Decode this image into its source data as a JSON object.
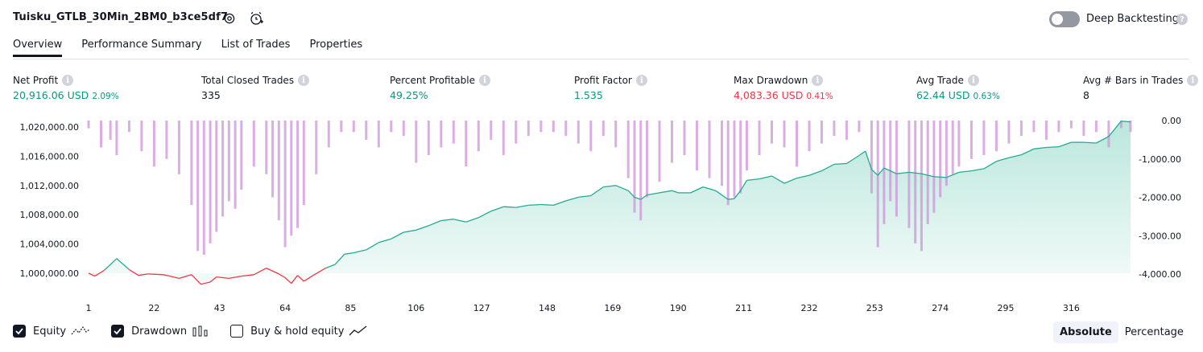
{
  "header": {
    "strategy_name": "Tuisku_GTLB_30Min_2BM0_b3ce5df7",
    "settings_icon": "gear-icon",
    "alert_icon": "alarm-clock-plus-icon",
    "deep_backtesting_label": "Deep Backtesting",
    "deep_backtesting_enabled": false,
    "help_icon": "question-mark-icon"
  },
  "tabs": [
    {
      "label": "Overview",
      "active": true
    },
    {
      "label": "Performance Summary",
      "active": false
    },
    {
      "label": "List of Trades",
      "active": false
    },
    {
      "label": "Properties",
      "active": false
    }
  ],
  "metrics": {
    "net_profit": {
      "label": "Net Profit",
      "value": "20,916.06 USD",
      "pct": "2.09%"
    },
    "total_closed_trades": {
      "label": "Total Closed Trades",
      "value": "335"
    },
    "percent_profitable": {
      "label": "Percent Profitable",
      "value": "49.25%"
    },
    "profit_factor": {
      "label": "Profit Factor",
      "value": "1.535"
    },
    "max_drawdown": {
      "label": "Max Drawdown",
      "value": "4,083.36 USD",
      "pct": "0.41%"
    },
    "avg_trade": {
      "label": "Avg Trade",
      "value": "62.44 USD",
      "pct": "0.63%"
    },
    "avg_bars": {
      "label": "Avg # Bars in Trades",
      "value": "8"
    }
  },
  "colors": {
    "profit_green": "#089981",
    "loss_red": "#f23645",
    "equity_line": "#22ab94",
    "equity_fill": "#b2e4d8",
    "drawdown_bar": "#ce93d8",
    "drawdown_bar_overlap": "#9fa8da"
  },
  "chart_data": {
    "type": "area",
    "x_tick_labels": [
      "1",
      "22",
      "43",
      "64",
      "85",
      "106",
      "127",
      "148",
      "169",
      "190",
      "211",
      "232",
      "253",
      "274",
      "295",
      "316"
    ],
    "x_range": [
      1,
      335
    ],
    "left_axis": {
      "tick_labels": [
        "1,020,000.00",
        "1,016,000.00",
        "1,012,000.00",
        "1,008,000.00",
        "1,004,000.00",
        "1,000,000.00"
      ],
      "range": [
        998000,
        1021000
      ]
    },
    "right_axis": {
      "tick_labels": [
        "0.00",
        "-1,000.00",
        "-2,000.00",
        "-3,000.00",
        "-4,000.00"
      ],
      "range": [
        -4000,
        0
      ]
    },
    "series": [
      {
        "name": "Equity",
        "kind": "area",
        "x": [
          1,
          3,
          6,
          10,
          14,
          17,
          20,
          25,
          30,
          34,
          37,
          40,
          42,
          46,
          50,
          54,
          58,
          62,
          64,
          66,
          68,
          70,
          73,
          77,
          80,
          83,
          86,
          90,
          94,
          98,
          102,
          106,
          110,
          114,
          118,
          122,
          126,
          130,
          134,
          138,
          142,
          146,
          150,
          154,
          158,
          162,
          166,
          170,
          174,
          176,
          178,
          180,
          184,
          188,
          190,
          194,
          198,
          202,
          206,
          208,
          210,
          212,
          216,
          220,
          224,
          228,
          232,
          236,
          240,
          244,
          248,
          250,
          252,
          254,
          256,
          260,
          264,
          268,
          272,
          276,
          280,
          284,
          288,
          292,
          296,
          300,
          304,
          308,
          312,
          316,
          320,
          324,
          328,
          332,
          335
        ],
        "values": [
          1000000,
          999600,
          1000400,
          1002000,
          1000500,
          999700,
          999900,
          999800,
          999300,
          999800,
          998500,
          998800,
          999500,
          999300,
          999600,
          999800,
          1000700,
          999900,
          999400,
          998600,
          999700,
          998900,
          999700,
          1000700,
          1001200,
          1002600,
          1002800,
          1003200,
          1004200,
          1004700,
          1005600,
          1005900,
          1006500,
          1007200,
          1007400,
          1007000,
          1007600,
          1008500,
          1009100,
          1009000,
          1009300,
          1009400,
          1009300,
          1009900,
          1010400,
          1010600,
          1011800,
          1012000,
          1011300,
          1010400,
          1010100,
          1010700,
          1011000,
          1011300,
          1011000,
          1011000,
          1011800,
          1011300,
          1010100,
          1010200,
          1011300,
          1012700,
          1012900,
          1013300,
          1012300,
          1013000,
          1013400,
          1014000,
          1014900,
          1015000,
          1016100,
          1016700,
          1014200,
          1013400,
          1014400,
          1013600,
          1013800,
          1013600,
          1013200,
          1013100,
          1013800,
          1014000,
          1014300,
          1015300,
          1015800,
          1016200,
          1017000,
          1017200,
          1017300,
          1017900,
          1017900,
          1017800,
          1018700,
          1020800,
          1020700
        ]
      },
      {
        "name": "Drawdown",
        "kind": "bar",
        "x": [
          1,
          5,
          8,
          10,
          14,
          18,
          22,
          26,
          30,
          34,
          36,
          38,
          40,
          42,
          44,
          46,
          48,
          50,
          54,
          58,
          60,
          62,
          64,
          66,
          68,
          70,
          74,
          78,
          82,
          86,
          90,
          94,
          98,
          102,
          106,
          110,
          114,
          118,
          122,
          126,
          130,
          134,
          138,
          142,
          146,
          150,
          154,
          158,
          162,
          166,
          170,
          174,
          176,
          178,
          180,
          184,
          188,
          192,
          196,
          200,
          204,
          206,
          208,
          210,
          212,
          216,
          220,
          224,
          228,
          232,
          236,
          240,
          244,
          248,
          252,
          254,
          256,
          258,
          260,
          264,
          266,
          268,
          270,
          272,
          274,
          276,
          278,
          280,
          284,
          288,
          292,
          296,
          300,
          304,
          308,
          312,
          316,
          320,
          324,
          328,
          332,
          335
        ],
        "values": [
          -200,
          -700,
          -500,
          -900,
          -300,
          -800,
          -1200,
          -1000,
          -1400,
          -2200,
          -3400,
          -3500,
          -3200,
          -2900,
          -2500,
          -2100,
          -2300,
          -1800,
          -1200,
          -1400,
          -2000,
          -2600,
          -3300,
          -3000,
          -2800,
          -2200,
          -1400,
          -700,
          -300,
          -300,
          -500,
          -700,
          -300,
          -400,
          -1100,
          -900,
          -700,
          -600,
          -1200,
          -800,
          -500,
          -900,
          -600,
          -400,
          -300,
          -300,
          -400,
          -600,
          -800,
          -400,
          -700,
          -1500,
          -2400,
          -2600,
          -2000,
          -1600,
          -1100,
          -900,
          -1300,
          -1500,
          -1700,
          -2200,
          -2000,
          -1900,
          -1300,
          -900,
          -600,
          -700,
          -1200,
          -800,
          -600,
          -400,
          -500,
          -300,
          -1900,
          -3300,
          -2700,
          -2100,
          -2500,
          -2800,
          -3200,
          -3400,
          -2700,
          -2400,
          -2000,
          -1700,
          -1400,
          -1200,
          -1000,
          -900,
          -800,
          -600,
          -400,
          -300,
          -500,
          -300,
          -200,
          -400,
          -300,
          -700,
          -200,
          -300
        ]
      }
    ],
    "legend": [
      {
        "label": "Equity",
        "checked": true,
        "icon": "line-icon"
      },
      {
        "label": "Drawdown",
        "checked": true,
        "icon": "bar-chart-icon"
      },
      {
        "label": "Buy & hold equity",
        "checked": false,
        "icon": "line-icon"
      }
    ],
    "view_mode": {
      "options": [
        "Absolute",
        "Percentage"
      ],
      "selected": "Absolute"
    },
    "grid": false
  }
}
